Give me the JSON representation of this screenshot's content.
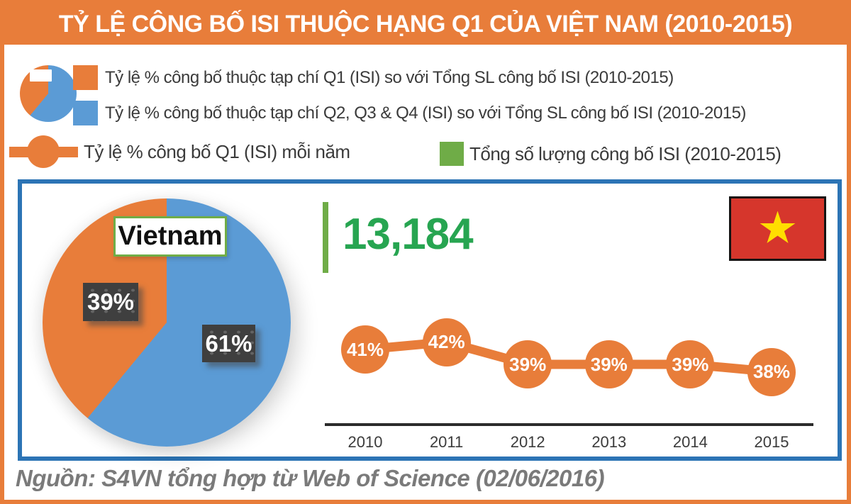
{
  "title": "TỶ LỆ CÔNG BỐ ISI THUỘC HẠNG Q1 CỦA VIỆT NAM (2010-2015)",
  "legend": {
    "items": [
      {
        "swatch": "orange-square",
        "label": "Tỷ lệ % công bố thuộc tạp chí Q1 (ISI) so với Tổng SL công bố ISI (2010-2015)"
      },
      {
        "swatch": "blue-square",
        "label": "Tỷ lệ % công bố thuộc tạp chí Q2, Q3 & Q4 (ISI) so với Tổng SL công bố ISI (2010-2015)"
      },
      {
        "swatch": "orange-line-marker",
        "label": "Tỷ lệ % công bố Q1 (ISI) mỗi năm"
      },
      {
        "swatch": "green-square",
        "label": "Tổng số lượng công bố ISI (2010-2015)"
      }
    ]
  },
  "main": {
    "country_label": "Vietnam",
    "total_publications": "13,184"
  },
  "chart_data": [
    {
      "type": "pie",
      "title": "Vietnam",
      "labels": [
        "Q1 (ISI) share",
        "Q2, Q3 & Q4 (ISI) share"
      ],
      "values": [
        39,
        61
      ],
      "display_values": [
        "39%",
        "61%"
      ],
      "unit": "%",
      "colors": [
        "#E87D3A",
        "#5B9BD5"
      ]
    },
    {
      "type": "line",
      "title": "Tỷ lệ % công bố Q1 (ISI) mỗi năm",
      "categories": [
        "2010",
        "2011",
        "2012",
        "2013",
        "2014",
        "2015"
      ],
      "values": [
        41,
        42,
        39,
        39,
        39,
        38
      ],
      "display_values": [
        "41%",
        "42%",
        "39%",
        "39%",
        "39%",
        "38%"
      ],
      "unit": "%",
      "color": "#E87D3A",
      "marker": "filled-circle-with-label",
      "axis": "x-only"
    }
  ],
  "footer": {
    "source": "Nguồn: S4VN tổng hợp từ Web of Science (02/06/2016)"
  },
  "colors": {
    "accent_orange": "#E87D3A",
    "pie_blue": "#5B9BD5",
    "box_border_blue": "#2C74B5",
    "legend_green": "#6FAC47",
    "number_green": "#27A551",
    "label_box_dark": "#3F3F3F",
    "flag_red": "#D6362C",
    "star_yellow": "#FFDE00",
    "footer_gray": "#7A7A7A"
  }
}
